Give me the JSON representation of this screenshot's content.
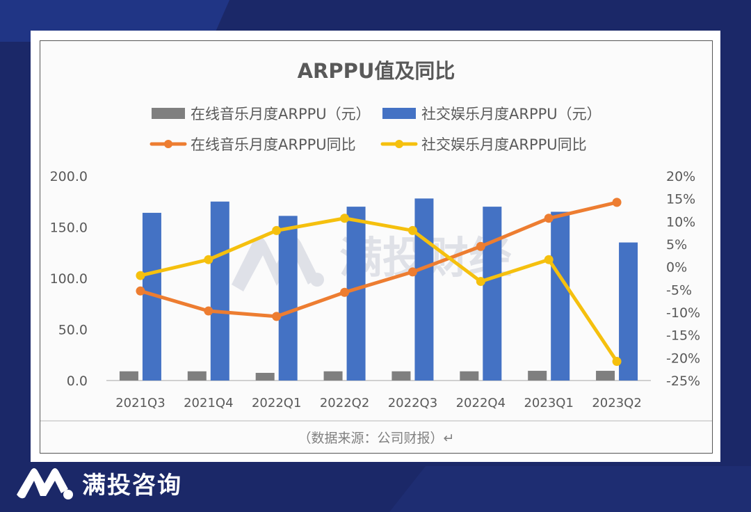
{
  "brand": {
    "name": "满投咨询",
    "logo_icon": "mountain-m-logo-icon"
  },
  "watermark": {
    "text": "满投财经"
  },
  "source_note": "（数据来源：公司财报）↵",
  "colors": {
    "background": "#1b2868",
    "music_bar": "#7f7f7f",
    "social_bar": "#4472c4",
    "music_line": "#ed7d31",
    "social_line": "#f5c00e"
  },
  "chart_data": {
    "type": "bar",
    "title": "ARPPU值及同比",
    "xlabel": "",
    "ylabel": "",
    "categories": [
      "2021Q3",
      "2021Q4",
      "2022Q1",
      "2022Q2",
      "2022Q3",
      "2022Q4",
      "2023Q1",
      "2023Q2"
    ],
    "ylim": [
      0,
      200
    ],
    "y_ticks": [
      "0.0",
      "50.0",
      "100.0",
      "150.0",
      "200.0"
    ],
    "y2lim": [
      -25,
      20
    ],
    "y2_ticks": [
      "-25%",
      "-20%",
      "-15%",
      "-10%",
      "-5%",
      "0%",
      "5%",
      "10%",
      "15%",
      "20%"
    ],
    "grid": false,
    "legend_position": "top",
    "series": [
      {
        "name": "在线音乐月度ARPPU（元）",
        "type": "bar",
        "axis": "left",
        "color": "#7f7f7f",
        "values": [
          9.0,
          9.0,
          7.5,
          9.0,
          9.0,
          9.0,
          9.5,
          9.5
        ]
      },
      {
        "name": "社交娱乐月度ARPPU（元）",
        "type": "bar",
        "axis": "left",
        "color": "#4472c4",
        "values": [
          164,
          175,
          161,
          170,
          178,
          170,
          165,
          135
        ]
      },
      {
        "name": "在线音乐月度ARPPU同比",
        "type": "line",
        "axis": "right",
        "unit": "%",
        "color": "#ed7d31",
        "values": [
          -5.3,
          -9.7,
          -10.9,
          -5.6,
          -1.1,
          4.5,
          10.7,
          14.2
        ]
      },
      {
        "name": "社交娱乐月度ARPPU同比",
        "type": "line",
        "axis": "right",
        "unit": "%",
        "color": "#f5c00e",
        "values": [
          -1.9,
          1.6,
          8.0,
          10.7,
          8.0,
          -3.2,
          1.6,
          -20.8
        ]
      }
    ]
  }
}
